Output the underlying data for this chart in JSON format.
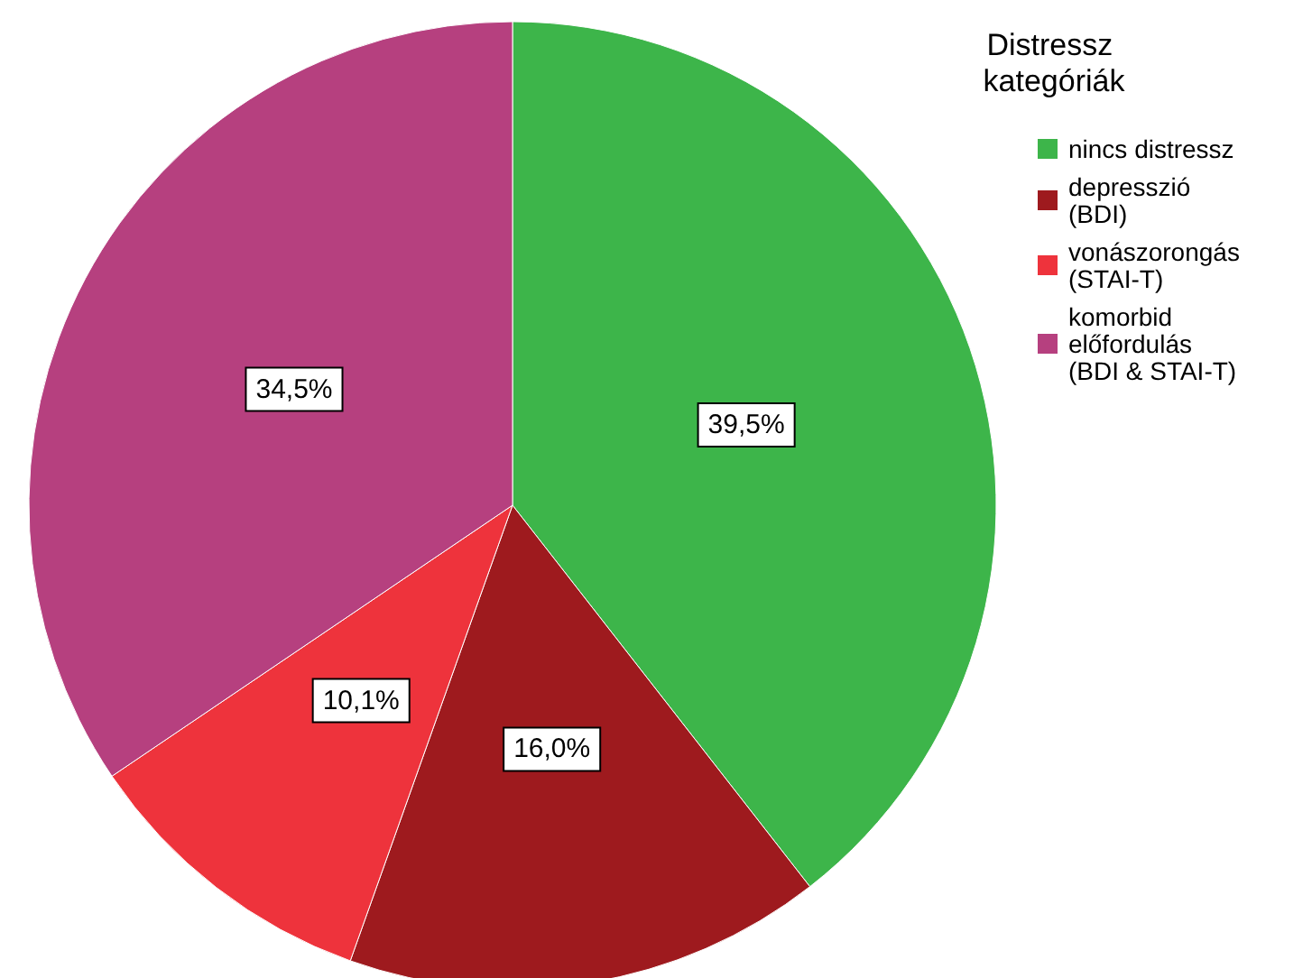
{
  "chart_data": {
    "type": "pie",
    "legend_title": "Distressz kategóriák",
    "categories": [
      "nincs distressz",
      "depresszió (BDI)",
      "vonászorongás (STAI-T)",
      "komorbid előfordulás (BDI & STAI-T)"
    ],
    "values": [
      39.5,
      16.0,
      10.1,
      34.5
    ],
    "value_labels": [
      "39,5%",
      "16,0%",
      "10,1%",
      "34,5%"
    ],
    "colors": [
      "#3db54a",
      "#9e1a1e",
      "#ee333c",
      "#b6407f"
    ],
    "legend": "top right"
  }
}
